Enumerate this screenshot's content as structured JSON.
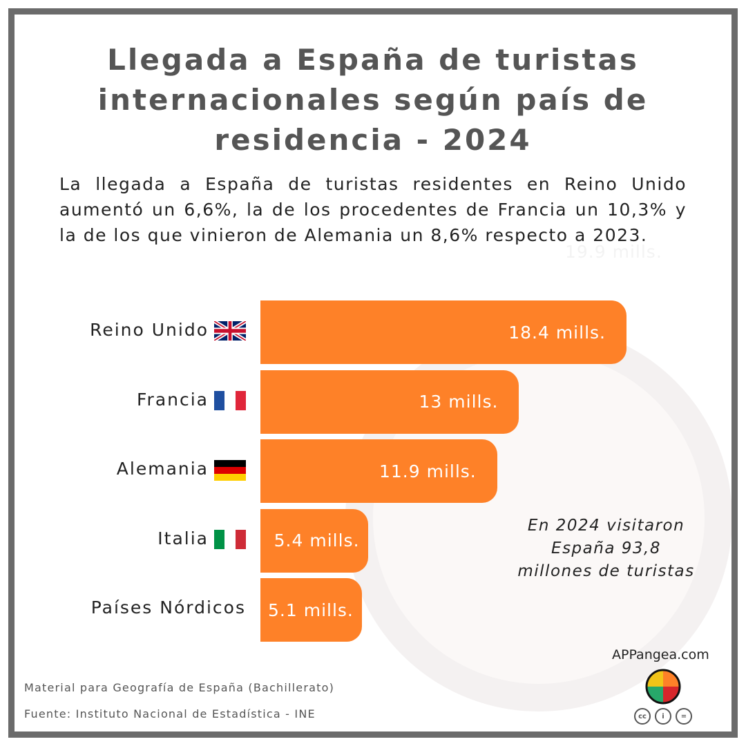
{
  "title": "Llegada a España de turistas internacionales según país de residencia - 2024",
  "subtitle": "La llegada a España de turistas residentes en Reino Unido aumentó un 6,6%, la de los procedentes de Francia un 10,3% y la de los que vinieron de Alemania un 8,6% respecto a 2023.",
  "ghost_label": "19.9 mills.",
  "note": "En 2024 visitaron España 93,8 millones de turistas",
  "footer": {
    "material": "Material para Geografía de España (Bachillerato)",
    "source": "Fuente: Instituto Nacional de Estadística - INE"
  },
  "brand": {
    "site": "APPangea.com",
    "license_icons": [
      "cc-icon",
      "by-icon",
      "nd-icon"
    ]
  },
  "chart_data": {
    "type": "bar",
    "orientation": "horizontal",
    "categories": [
      "Reino Unido",
      "Francia",
      "Alemania",
      "Italia",
      "Países Nórdicos"
    ],
    "values": [
      18.4,
      13,
      11.9,
      5.4,
      5.1
    ],
    "data_labels": [
      "18.4 mills.",
      "13 mills.",
      "11.9 mills.",
      "5.4 mills.",
      "5.1 mills."
    ],
    "flags": [
      "uk-flag-icon",
      "france-flag-icon",
      "germany-flag-icon",
      "italy-flag-icon",
      ""
    ],
    "bar_color": "#fe8128",
    "unit": "millones",
    "grid": false
  }
}
